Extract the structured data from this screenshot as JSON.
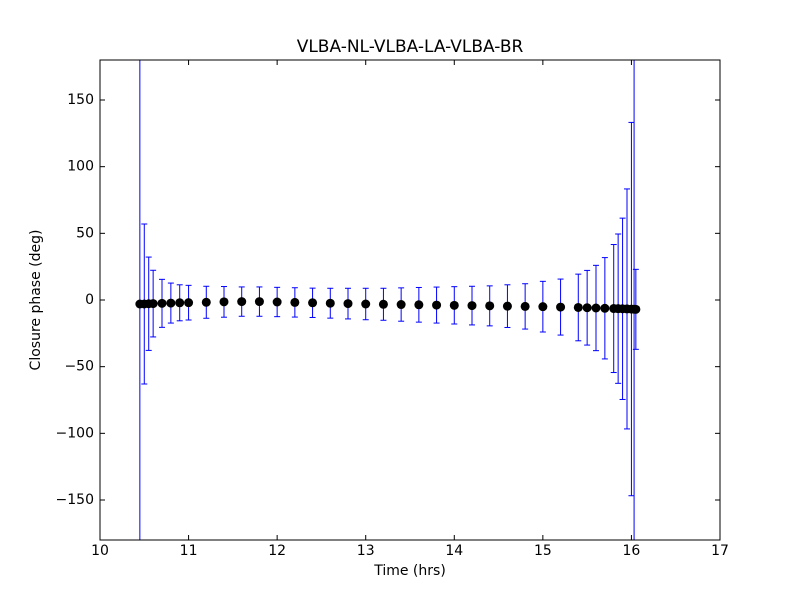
{
  "chart_data": {
    "type": "errorbar",
    "title": "VLBA-NL-VLBA-LA-VLBA-BR",
    "xlabel": "Time (hrs)",
    "ylabel": "Closure phase (deg)",
    "x": [
      10.45,
      10.5,
      10.55,
      10.6,
      10.7,
      10.8,
      10.9,
      11.0,
      11.2,
      11.4,
      11.6,
      11.8,
      12.0,
      12.2,
      12.4,
      12.6,
      12.8,
      13.0,
      13.2,
      13.4,
      13.6,
      13.8,
      14.0,
      14.2,
      14.4,
      14.6,
      14.8,
      15.0,
      15.2,
      15.4,
      15.5,
      15.6,
      15.7,
      15.8,
      15.85,
      15.9,
      15.95,
      16.0,
      16.03,
      16.05
    ],
    "values": [
      -3,
      -3,
      -2.8,
      -2.7,
      -2.5,
      -2.3,
      -2.1,
      -2,
      -1.7,
      -1.4,
      -1.2,
      -1.2,
      -1.5,
      -1.8,
      -2.1,
      -2.4,
      -2.7,
      -3,
      -3.2,
      -3.4,
      -3.6,
      -3.8,
      -4,
      -4.2,
      -4.4,
      -4.6,
      -4.8,
      -5,
      -5.3,
      -5.6,
      -5.8,
      -6,
      -6.2,
      -6.4,
      -6.5,
      -6.6,
      -6.7,
      -6.8,
      -6.9,
      -7
    ],
    "errors": [
      200,
      60,
      35,
      25,
      18,
      15,
      13.5,
      13,
      12,
      11.5,
      11,
      11,
      11,
      11,
      11,
      11.2,
      11.5,
      11.8,
      12,
      12.5,
      13,
      13.5,
      14,
      14.5,
      15,
      16,
      17,
      19,
      21,
      25,
      28,
      32,
      38,
      48,
      56,
      68,
      90,
      140,
      200,
      30
    ],
    "color": "#0000ff",
    "marker_color": "#000000",
    "xlim": [
      10,
      17
    ],
    "xticks": [
      10,
      11,
      12,
      13,
      14,
      15,
      16,
      17
    ],
    "ylim": [
      -180,
      180
    ],
    "yticks": [
      {
        "value": -150,
        "label": "−150"
      },
      {
        "value": -100,
        "label": "−100"
      },
      {
        "value": -50,
        "label": "−50"
      },
      0,
      50,
      100,
      150
    ],
    "grid": false
  }
}
